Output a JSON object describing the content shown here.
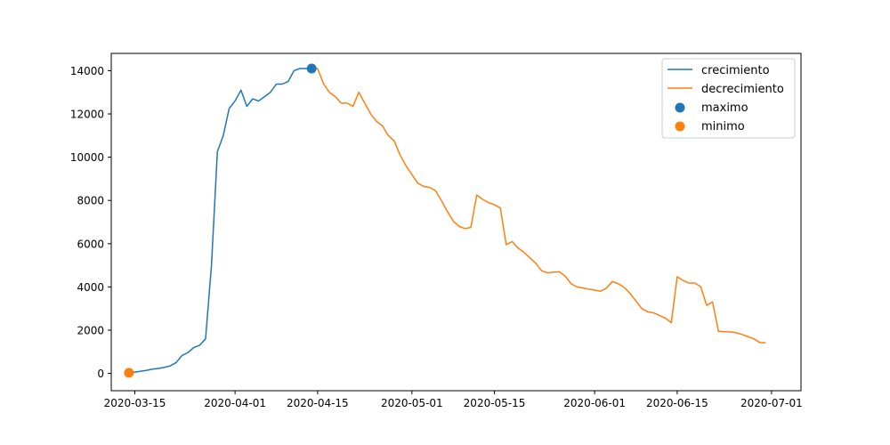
{
  "chart_data": {
    "type": "line",
    "title": "",
    "xlabel": "",
    "ylabel": "",
    "x_type": "date",
    "xlim": [
      "2020-03-11",
      "2020-07-06"
    ],
    "ylim": [
      -800,
      14800
    ],
    "grid": false,
    "legend_position": "top-right",
    "x_ticks": [
      "2020-03-15",
      "2020-04-01",
      "2020-04-15",
      "2020-05-01",
      "2020-05-15",
      "2020-06-01",
      "2020-06-15",
      "2020-07-01"
    ],
    "y_ticks": [
      0,
      2000,
      4000,
      6000,
      8000,
      10000,
      12000,
      14000
    ],
    "colors": {
      "crecimiento": "#1f77b4",
      "decrecimiento": "#ff7f0e"
    },
    "legend": {
      "crecimiento": "crecimiento",
      "decrecimiento": "decrecimiento",
      "maximo": "maximo",
      "minimo": "minimo"
    },
    "series": [
      {
        "name": "crecimiento",
        "x": [
          "2020-03-14",
          "2020-03-15",
          "2020-03-16",
          "2020-03-17",
          "2020-03-18",
          "2020-03-19",
          "2020-03-20",
          "2020-03-21",
          "2020-03-22",
          "2020-03-23",
          "2020-03-24",
          "2020-03-25",
          "2020-03-26",
          "2020-03-27",
          "2020-03-28",
          "2020-03-29",
          "2020-03-30",
          "2020-03-31",
          "2020-04-01",
          "2020-04-02",
          "2020-04-03",
          "2020-04-04",
          "2020-04-05",
          "2020-04-06",
          "2020-04-07",
          "2020-04-08",
          "2020-04-09",
          "2020-04-10",
          "2020-04-11",
          "2020-04-12",
          "2020-04-13",
          "2020-04-14"
        ],
        "values": [
          30,
          60,
          100,
          140,
          200,
          230,
          280,
          350,
          500,
          830,
          960,
          1200,
          1300,
          1600,
          5000,
          10250,
          11000,
          12250,
          12600,
          13100,
          12350,
          12700,
          12600,
          12800,
          13000,
          13380,
          13380,
          13500,
          14000,
          14100,
          14100,
          14100
        ]
      },
      {
        "name": "decrecimiento",
        "x": [
          "2020-04-14",
          "2020-04-15",
          "2020-04-16",
          "2020-04-17",
          "2020-04-18",
          "2020-04-19",
          "2020-04-20",
          "2020-04-21",
          "2020-04-22",
          "2020-04-23",
          "2020-04-24",
          "2020-04-25",
          "2020-04-26",
          "2020-04-27",
          "2020-04-28",
          "2020-04-29",
          "2020-04-30",
          "2020-05-01",
          "2020-05-02",
          "2020-05-03",
          "2020-05-04",
          "2020-05-05",
          "2020-05-06",
          "2020-05-07",
          "2020-05-08",
          "2020-05-09",
          "2020-05-10",
          "2020-05-11",
          "2020-05-12",
          "2020-05-13",
          "2020-05-14",
          "2020-05-15",
          "2020-05-16",
          "2020-05-17",
          "2020-05-18",
          "2020-05-19",
          "2020-05-20",
          "2020-05-21",
          "2020-05-22",
          "2020-05-23",
          "2020-05-24",
          "2020-05-25",
          "2020-05-26",
          "2020-05-27",
          "2020-05-28",
          "2020-05-29",
          "2020-05-30",
          "2020-05-31",
          "2020-06-01",
          "2020-06-02",
          "2020-06-03",
          "2020-06-04",
          "2020-06-05",
          "2020-06-06",
          "2020-06-07",
          "2020-06-08",
          "2020-06-09",
          "2020-06-10",
          "2020-06-11",
          "2020-06-12",
          "2020-06-13",
          "2020-06-14",
          "2020-06-15",
          "2020-06-16",
          "2020-06-17",
          "2020-06-18",
          "2020-06-19",
          "2020-06-20",
          "2020-06-21",
          "2020-06-22",
          "2020-06-23",
          "2020-06-24",
          "2020-06-25",
          "2020-06-26",
          "2020-06-27",
          "2020-06-28",
          "2020-06-29",
          "2020-06-30"
        ],
        "values": [
          14100,
          14100,
          13400,
          13000,
          12800,
          12500,
          12500,
          12350,
          13000,
          12500,
          12000,
          11650,
          11450,
          11000,
          10750,
          10100,
          9600,
          9200,
          8800,
          8650,
          8600,
          8450,
          8000,
          7500,
          7050,
          6800,
          6700,
          6750,
          8250,
          8050,
          7900,
          7800,
          7650,
          5950,
          6100,
          5800,
          5600,
          5350,
          5100,
          4750,
          4650,
          4680,
          4700,
          4500,
          4150,
          4000,
          3950,
          3900,
          3850,
          3800,
          3950,
          4250,
          4150,
          3980,
          3700,
          3350,
          3000,
          2850,
          2800,
          2680,
          2550,
          2350,
          4470,
          4300,
          4180,
          4180,
          4000,
          3150,
          3300,
          1950,
          1930,
          1920,
          1880,
          1800,
          1700,
          1600,
          1430,
          1420
        ]
      }
    ],
    "points": [
      {
        "name": "maximo",
        "x": "2020-04-14",
        "value": 14100
      },
      {
        "name": "minimo",
        "x": "2020-03-14",
        "value": 30
      }
    ]
  }
}
